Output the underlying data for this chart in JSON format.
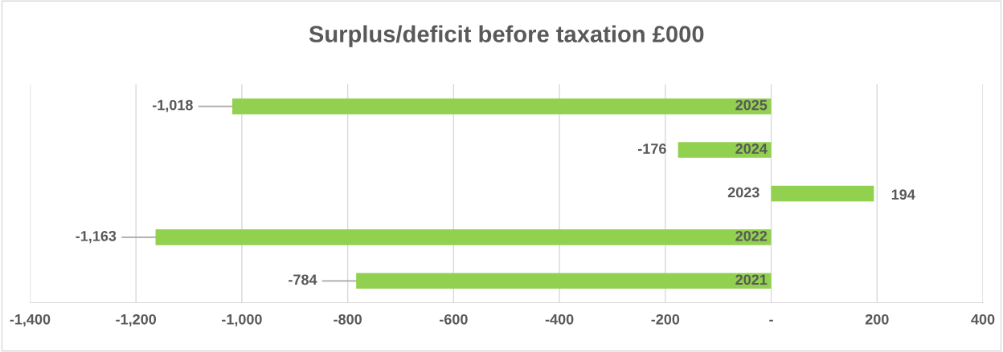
{
  "chart_data": {
    "type": "bar",
    "orientation": "horizontal",
    "title": "Surplus/deficit before taxation £000",
    "categories": [
      "2025",
      "2024",
      "2023",
      "2022",
      "2021"
    ],
    "values": [
      -1018,
      -176,
      194,
      -1163,
      -784
    ],
    "value_labels": [
      "-1,018",
      "-176",
      "194",
      "-1,163",
      "-784"
    ],
    "color": "#92d050",
    "xlim": [
      -1400,
      400
    ],
    "xticks": [
      {
        "value": -1400,
        "label": "-1,400"
      },
      {
        "value": -1200,
        "label": "-1,200"
      },
      {
        "value": -1000,
        "label": "-1,000"
      },
      {
        "value": -800,
        "label": "-800"
      },
      {
        "value": -600,
        "label": "-600"
      },
      {
        "value": -400,
        "label": "-400"
      },
      {
        "value": -200,
        "label": "-200"
      },
      {
        "value": 0,
        "label": "-"
      },
      200,
      400
    ],
    "grid": "x",
    "legend": false
  }
}
